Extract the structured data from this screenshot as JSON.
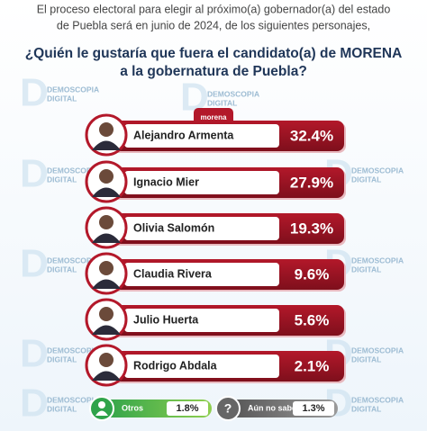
{
  "header": {
    "intro": [
      "El proceso electoral para elegir al próximo(a) gobernador(a) del estado",
      "de Puebla será en junio de 2024, de los siguientes personajes,"
    ],
    "question": [
      "¿Quién le gustaría que fuera el candidato(a) de MORENA",
      "a la gobernatura de Puebla?"
    ]
  },
  "logo": "morena",
  "watermark": [
    "DEMOSCOPIA",
    "DIGITAL"
  ],
  "candidates": [
    {
      "name": "Alejandro Armenta",
      "value": "32.4%"
    },
    {
      "name": "Ignacio Mier",
      "value": "27.9%"
    },
    {
      "name": "Olivia Salomón",
      "value": "19.3%"
    },
    {
      "name": "Claudia Rivera",
      "value": "9.6%"
    },
    {
      "name": "Julio Huerta",
      "value": "5.6%"
    },
    {
      "name": "Rodrigo Abdala",
      "value": "2.1%"
    }
  ],
  "others": [
    {
      "name": "Otros",
      "value": "1.8%"
    },
    {
      "name": "Aún no sabe",
      "value": "1.3%"
    }
  ]
}
